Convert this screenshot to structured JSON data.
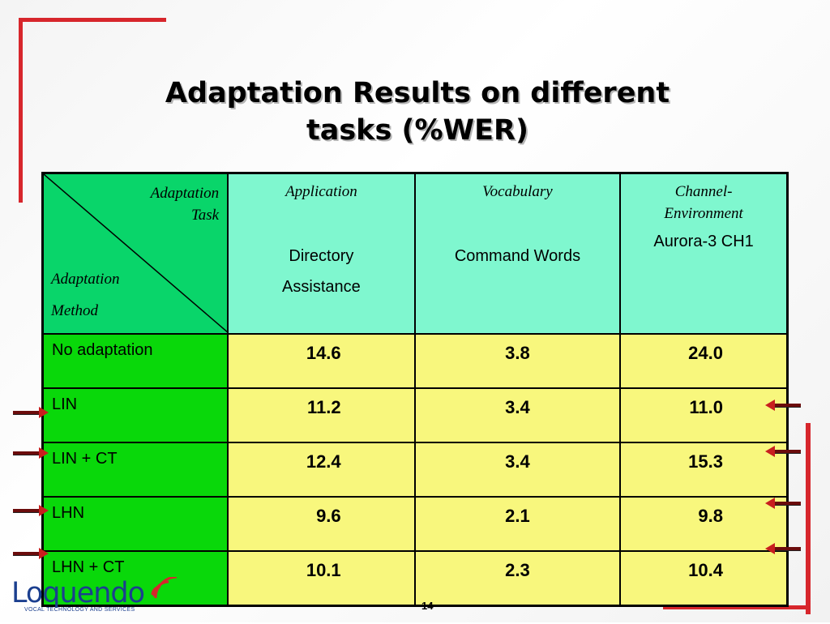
{
  "slide": {
    "title_line1": "Adaptation Results on different",
    "title_line2": "tasks (%WER)",
    "page_number": "14"
  },
  "table": {
    "corner_top": [
      "Adaptation",
      "Task"
    ],
    "corner_bottom": [
      "Adaptation",
      "Method"
    ],
    "columns": [
      {
        "header": "Application",
        "header2": "",
        "sub1": "Directory",
        "sub2": "Assistance"
      },
      {
        "header": "Vocabulary",
        "header2": "",
        "sub1": "Command Words",
        "sub2": ""
      },
      {
        "header": "Channel-",
        "header2": "Environment",
        "sub1": "Aurora-3 CH1",
        "sub2": ""
      }
    ],
    "rows": [
      {
        "method": "No adaptation",
        "values": [
          "14.6",
          "3.8",
          "24.0"
        ],
        "arrow_left": false,
        "arrow_right": false
      },
      {
        "method": "LIN",
        "values": [
          "11.2",
          "3.4",
          "11.0"
        ],
        "arrow_left": true,
        "arrow_right": true
      },
      {
        "method": "LIN + CT",
        "values": [
          "12.4",
          "3.4",
          "15.3"
        ],
        "arrow_left": true,
        "arrow_right": true
      },
      {
        "method": "LHN",
        "values": [
          "9.6",
          "2.1",
          "9.8"
        ],
        "arrow_left": true,
        "arrow_right": true
      },
      {
        "method": "LHN + CT",
        "values": [
          "10.1",
          "2.3",
          "10.4"
        ],
        "arrow_left": true,
        "arrow_right": true
      }
    ]
  },
  "logo": {
    "name": "Loquendo",
    "tagline": "VOCAL TECHNOLOGY AND SERVICES"
  },
  "colors": {
    "accent_red": "#d7262c",
    "header_bg": "#7ff7cf",
    "method_bg": "#09d80a",
    "value_bg": "#f8f77d",
    "logo_blue": "#1b3f8f"
  }
}
